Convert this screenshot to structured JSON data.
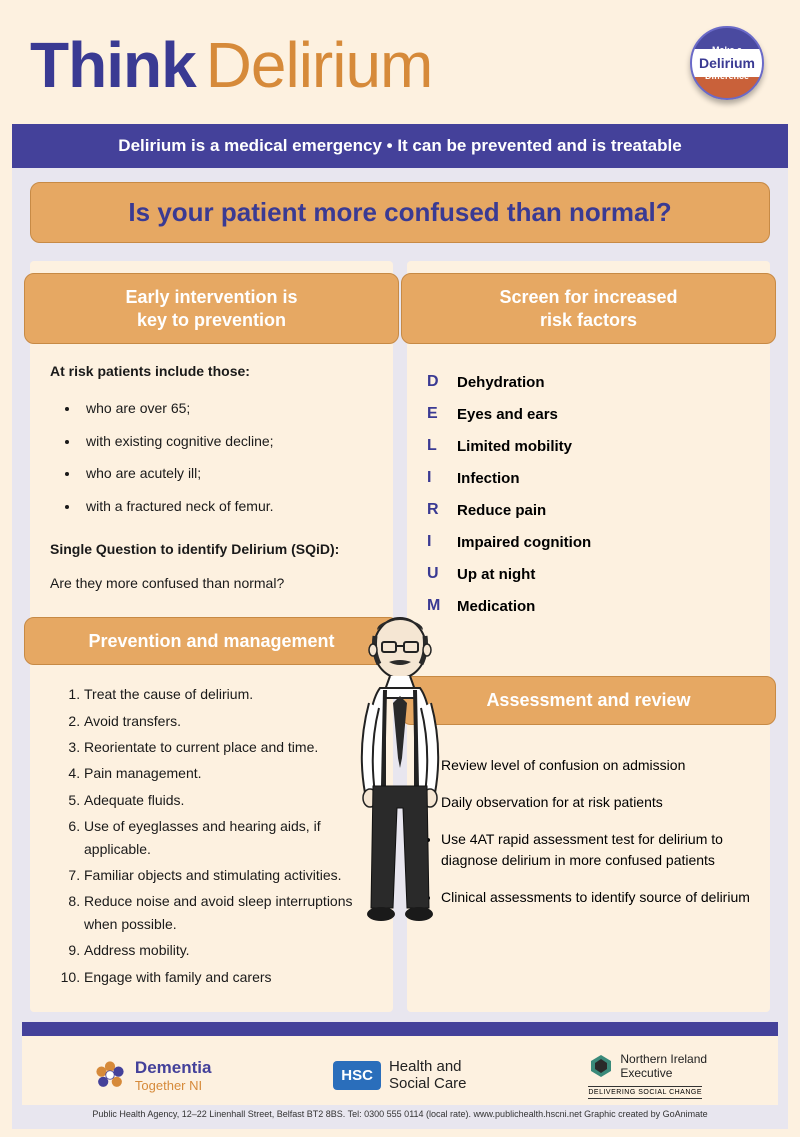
{
  "hero": {
    "word1": "Think",
    "word2": "Delirium"
  },
  "badge": {
    "top": "Make a",
    "mid": "Delirium",
    "bot": "Difference"
  },
  "strap": "Delirium is a medical emergency • It can be prevented and is treatable",
  "question": "Is your patient more confused than normal?",
  "colors": {
    "purple": "#44419a",
    "orange": "#e6a863",
    "cream": "#fdf1e0",
    "lilac": "#e8e6ef"
  },
  "left": {
    "pill1": "Early intervention is\nkey to prevention",
    "risk_head": "At risk patients include those:",
    "risk_items": [
      "who are over 65;",
      "with existing cognitive decline;",
      "who are acutely ill;",
      "with a fractured neck of femur."
    ],
    "sqid_head": "Single Question to identify Delirium (SQiD):",
    "sqid_q": "Are they more confused than normal?",
    "pill2": "Prevention and management",
    "steps": [
      "Treat the cause of delirium.",
      "Avoid transfers.",
      "Reorientate to current place and time.",
      "Pain management.",
      "Adequate fluids.",
      "Use of eyeglasses and hearing aids, if applicable.",
      "Familiar objects and stimulating activities.",
      "Reduce noise and avoid sleep interruptions when possible.",
      "Address mobility.",
      "Engage with family and carers"
    ]
  },
  "right": {
    "pill1": "Screen for increased\nrisk factors",
    "acro": [
      {
        "l": "D",
        "w": "Dehydration"
      },
      {
        "l": "E",
        "w": "Eyes and ears"
      },
      {
        "l": "L",
        "w": "Limited mobility"
      },
      {
        "l": "I",
        "w": "Infection"
      },
      {
        "l": "R",
        "w": "Reduce pain"
      },
      {
        "l": "I",
        "w": "Impaired cognition"
      },
      {
        "l": "U",
        "w": "Up at night"
      },
      {
        "l": "M",
        "w": "Medication"
      }
    ],
    "pill2": "Assessment and review",
    "assess": [
      "Review level of confusion on admission",
      "Daily observation for at risk patients",
      "Use 4AT rapid assessment test for delirium to diagnose delirium in more confused patients",
      "Clinical assessments to identify source of delirium"
    ]
  },
  "logos": {
    "l1a": "Dementia",
    "l1b": "Together NI",
    "l2a": "HSC",
    "l2b": "Health and\nSocial Care",
    "l3a": "Northern Ireland",
    "l3b": "Executive",
    "l3c": "DELIVERING SOCIAL CHANGE"
  },
  "footline": "Public Health Agency, 12–22 Linenhall Street, Belfast BT2 8BS. Tel: 0300 555 0114 (local rate).  www.publichealth.hscni.net          Graphic created by GoAnimate"
}
